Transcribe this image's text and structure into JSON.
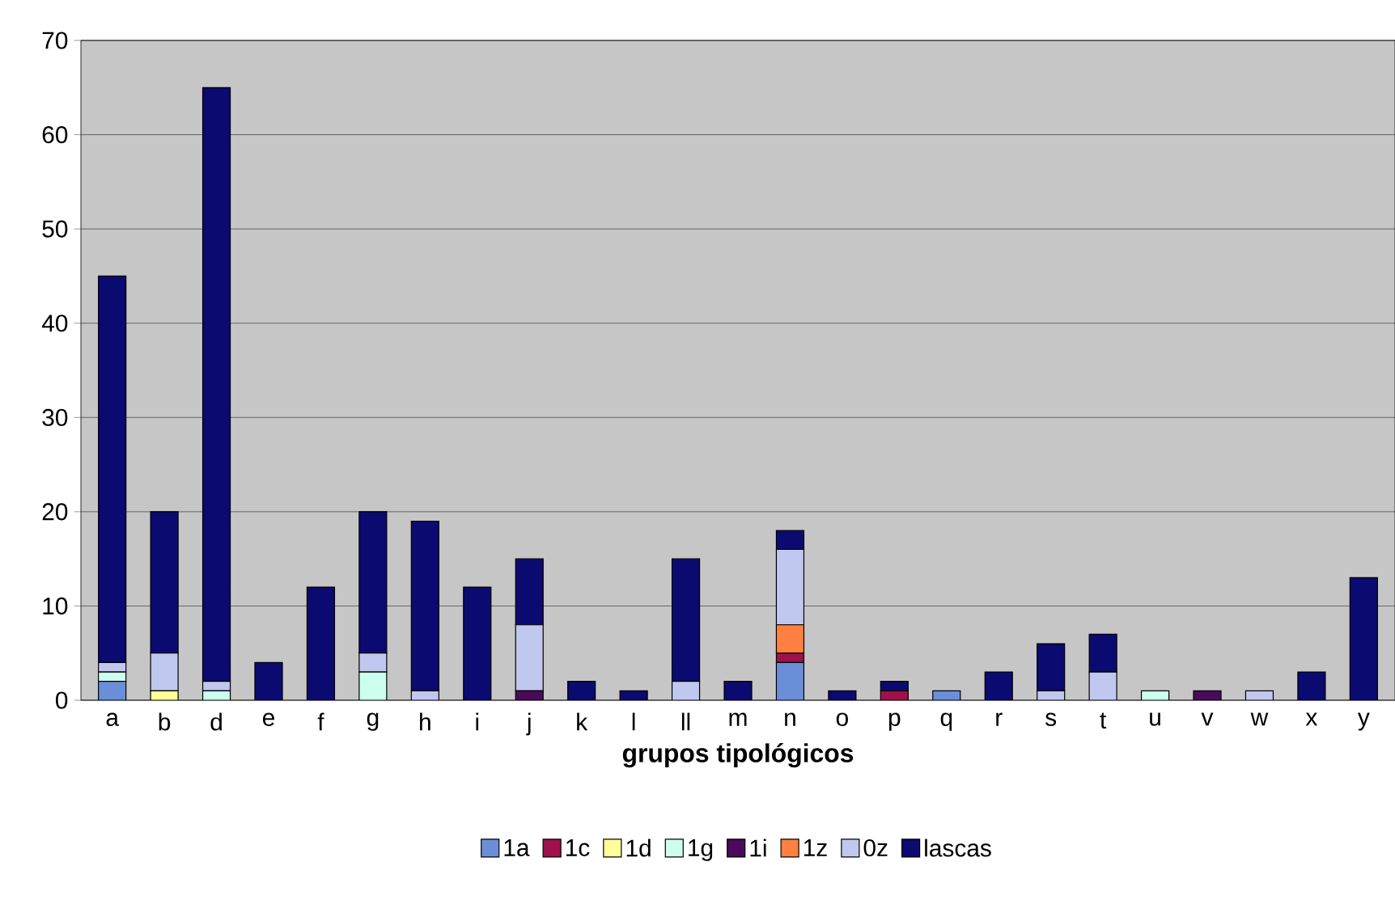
{
  "chart_data": {
    "type": "bar",
    "stacked": true,
    "xlabel": "grupos tipológicos",
    "categories": [
      "a",
      "b",
      "d",
      "e",
      "f",
      "g",
      "h",
      "i",
      "j",
      "k",
      "l",
      "ll",
      "m",
      "n",
      "o",
      "p",
      "q",
      "r",
      "s",
      "t",
      "u",
      "v",
      "w",
      "x",
      "y"
    ],
    "series": [
      {
        "name": "1a",
        "color": "#6a8fd8",
        "values": [
          2,
          0,
          0,
          0,
          0,
          0,
          0,
          0,
          0,
          0,
          0,
          0,
          0,
          4,
          0,
          0,
          1,
          0,
          0,
          0,
          0,
          0,
          0,
          0,
          0
        ]
      },
      {
        "name": "1c",
        "color": "#a0104a",
        "values": [
          0,
          0,
          0,
          0,
          0,
          0,
          0,
          0,
          0,
          0,
          0,
          0,
          0,
          1,
          0,
          1,
          0,
          0,
          0,
          0,
          0,
          0,
          0,
          0,
          0
        ]
      },
      {
        "name": "1d",
        "color": "#ffff99",
        "values": [
          0,
          1,
          0,
          0,
          0,
          0,
          0,
          0,
          0,
          0,
          0,
          0,
          0,
          0,
          0,
          0,
          0,
          0,
          0,
          0,
          0,
          0,
          0,
          0,
          0
        ]
      },
      {
        "name": "1g",
        "color": "#ccffee",
        "values": [
          1,
          0,
          1,
          0,
          0,
          3,
          0,
          0,
          0,
          0,
          0,
          0,
          0,
          0,
          0,
          0,
          0,
          0,
          0,
          0,
          1,
          0,
          0,
          0,
          0
        ]
      },
      {
        "name": "1i",
        "color": "#4a0a5a",
        "values": [
          0,
          0,
          0,
          0,
          0,
          0,
          0,
          0,
          1,
          0,
          0,
          0,
          0,
          0,
          0,
          0,
          0,
          0,
          0,
          0,
          0,
          1,
          0,
          0,
          0
        ]
      },
      {
        "name": "1z",
        "color": "#ff8040",
        "values": [
          0,
          0,
          0,
          0,
          0,
          0,
          0,
          0,
          0,
          0,
          0,
          0,
          0,
          3,
          0,
          0,
          0,
          0,
          0,
          0,
          0,
          0,
          0,
          0,
          0
        ]
      },
      {
        "name": "0z",
        "color": "#c0c8f0",
        "values": [
          1,
          4,
          1,
          0,
          0,
          2,
          1,
          0,
          7,
          0,
          0,
          2,
          0,
          8,
          0,
          0,
          0,
          0,
          1,
          3,
          0,
          0,
          1,
          0,
          0
        ]
      },
      {
        "name": "lascas",
        "color": "#0a0a70",
        "values": [
          41,
          15,
          63,
          4,
          12,
          15,
          18,
          12,
          7,
          2,
          1,
          13,
          2,
          2,
          1,
          1,
          0,
          3,
          5,
          4,
          0,
          0,
          0,
          3,
          13
        ]
      }
    ],
    "ylim": [
      0,
      70
    ],
    "yticks": [
      0,
      10,
      20,
      30,
      40,
      50,
      60,
      70
    ],
    "grid": "y",
    "legend": "bottom"
  }
}
